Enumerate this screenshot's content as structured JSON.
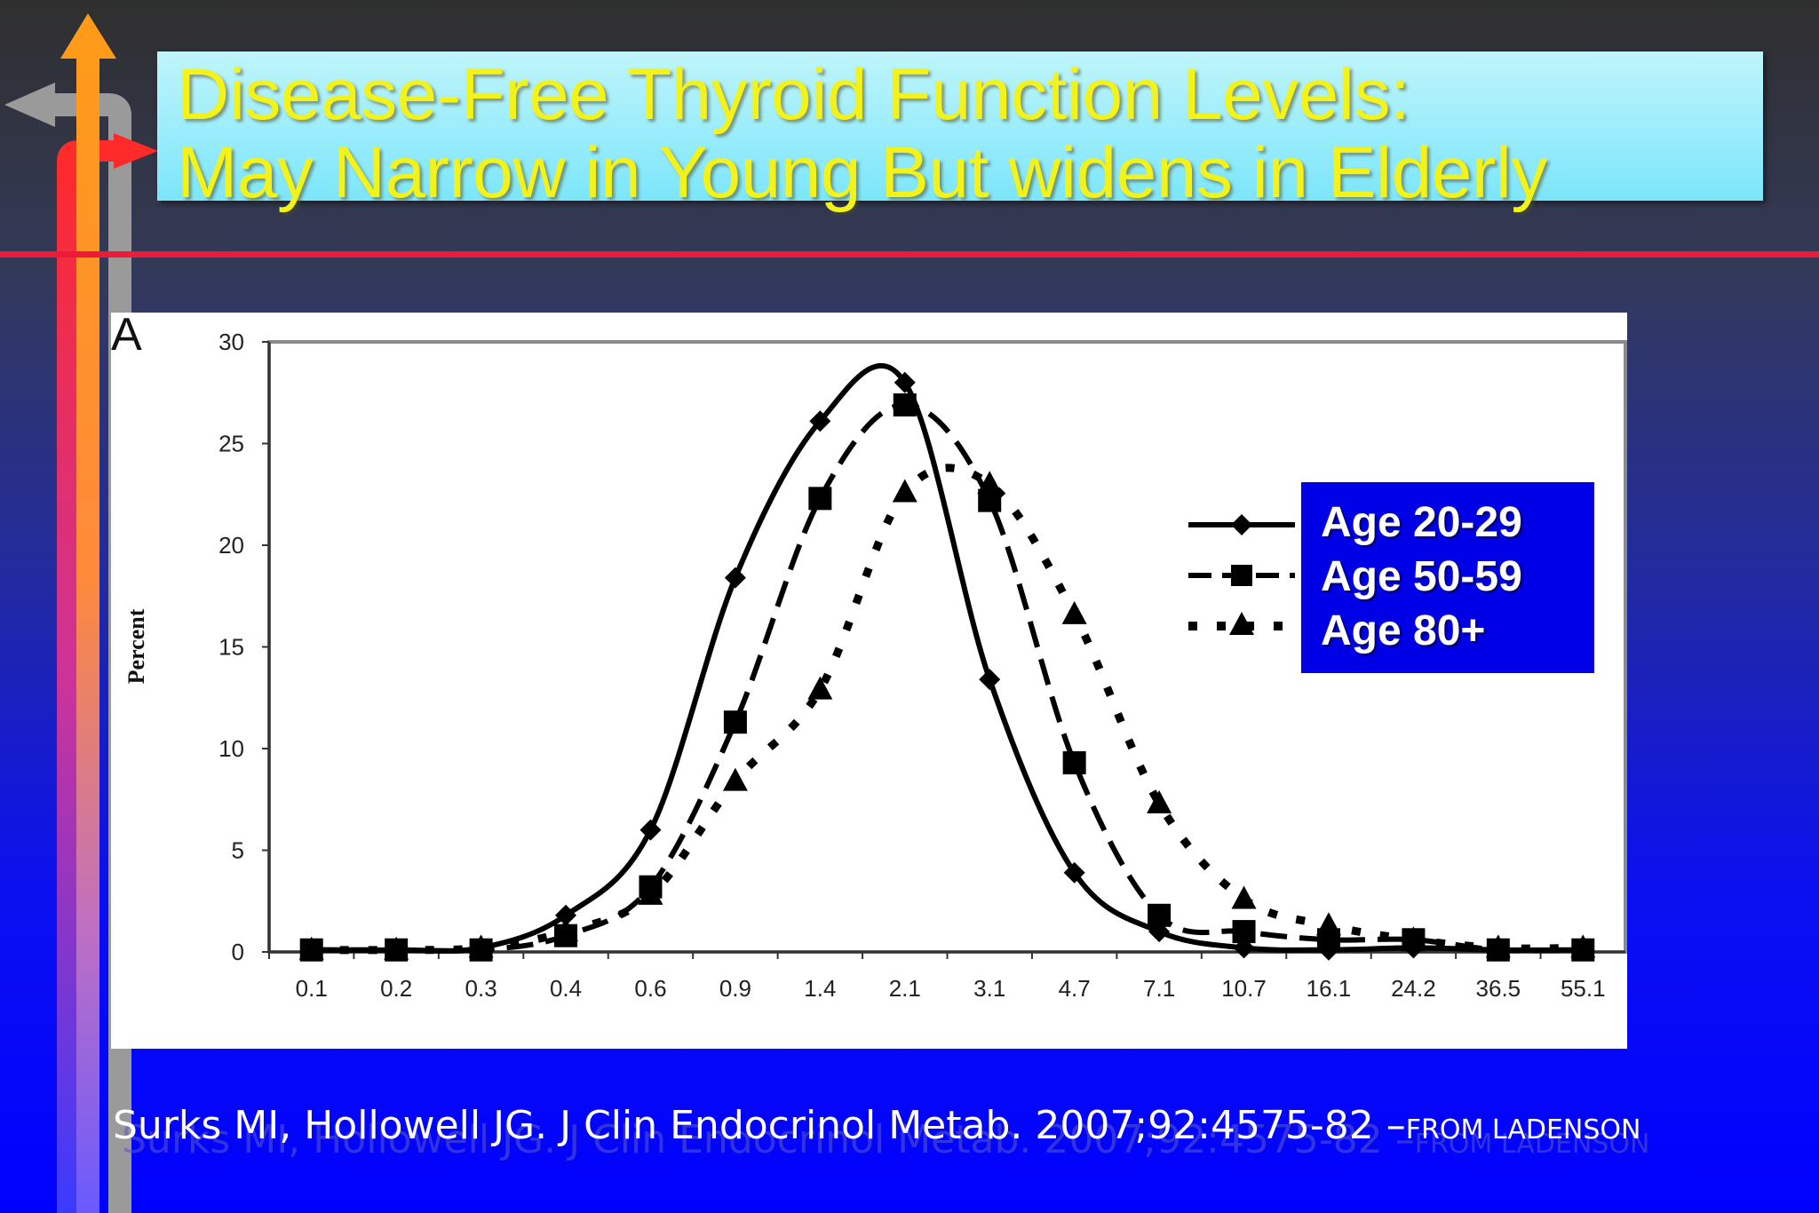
{
  "slide": {
    "title_line1": "Disease-Free Thyroid Function Levels:",
    "title_line2": "May Narrow in Young But widens in Elderly",
    "citation": "Surks MI, Hollowell JG. J Clin Endocrinol Metab. 2007;92:4575-82 –",
    "citation_from": "FROM LADENSON",
    "colors": {
      "title_text": "#f3f31a",
      "title_box": "#9ceefb",
      "legend_box": "#0000e6",
      "rule": "#ee1a3a"
    }
  },
  "chart_data": {
    "type": "line",
    "panel_label": "A",
    "ylabel": "Percent",
    "xlabel": "",
    "ylim": [
      0,
      30
    ],
    "yticks": [
      0,
      5,
      10,
      15,
      20,
      25,
      30
    ],
    "categories": [
      "0.1",
      "0.2",
      "0.3",
      "0.4",
      "0.6",
      "0.9",
      "1.4",
      "2.1",
      "3.1",
      "4.7",
      "7.1",
      "10.7",
      "16.1",
      "24.2",
      "36.5",
      "55.1"
    ],
    "series": [
      {
        "name": "Age 20-29",
        "marker": "diamond",
        "dash": "solid",
        "values": [
          0.1,
          0.1,
          0.2,
          1.8,
          6.0,
          18.4,
          26.1,
          28.0,
          13.4,
          3.9,
          1.0,
          0.2,
          0.1,
          0.2,
          0.1,
          0.1
        ]
      },
      {
        "name": "Age 50-59",
        "marker": "square",
        "dash": "dashed",
        "values": [
          0.1,
          0.1,
          0.1,
          0.8,
          3.2,
          11.3,
          22.3,
          26.9,
          22.2,
          9.3,
          1.8,
          1.0,
          0.6,
          0.6,
          0.1,
          0.1
        ]
      },
      {
        "name": "Age 80+",
        "marker": "triangle",
        "dash": "dotted",
        "values": [
          0.1,
          0.1,
          0.2,
          1.0,
          2.8,
          8.4,
          12.9,
          22.6,
          23.0,
          16.6,
          7.3,
          2.6,
          1.3,
          0.6,
          0.2,
          0.2
        ]
      }
    ],
    "legend_position": "right",
    "grid": false
  }
}
